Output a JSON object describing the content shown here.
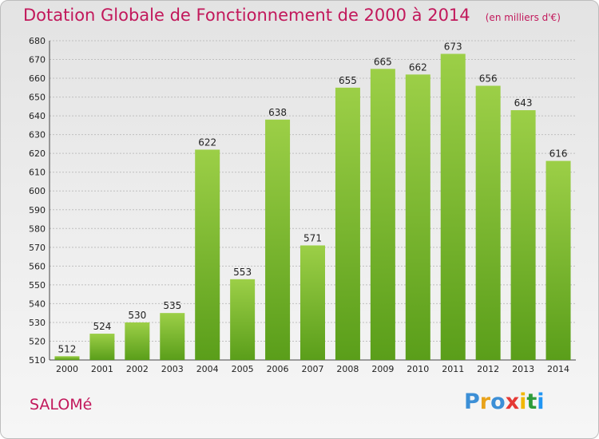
{
  "header": {
    "title": "Dotation Globale de Fonctionnement de 2000 à 2014",
    "subtitle": "(en milliers d'€)"
  },
  "commune": "SALOMé",
  "logo": {
    "letters": [
      {
        "ch": "P",
        "color": "#3c8fd6"
      },
      {
        "ch": "r",
        "color": "#e8a21a"
      },
      {
        "ch": "o",
        "color": "#3c8fd6"
      },
      {
        "ch": "x",
        "color": "#e53935"
      },
      {
        "ch": "i",
        "color": "#f2b705"
      },
      {
        "ch": "t",
        "color": "#2e9c3a"
      },
      {
        "ch": "i",
        "color": "#2196f3"
      }
    ]
  },
  "colors": {
    "accent": "#c2185b",
    "bar_top": "#9ccf47",
    "bar_bottom": "#5a9e1a",
    "grid": "#bfbfbf"
  },
  "chart_data": {
    "type": "bar",
    "title": "Dotation Globale de Fonctionnement de 2000 à 2014",
    "subtitle": "(en milliers d'€)",
    "categories": [
      "2000",
      "2001",
      "2002",
      "2003",
      "2004",
      "2005",
      "2006",
      "2007",
      "2008",
      "2009",
      "2010",
      "2011",
      "2012",
      "2013",
      "2014"
    ],
    "values": [
      512,
      524,
      530,
      535,
      622,
      553,
      638,
      571,
      655,
      665,
      662,
      673,
      656,
      643,
      616
    ],
    "ylim": [
      510,
      680
    ],
    "ytick_step": 10,
    "grid": true,
    "legend": "none",
    "data_labels": true
  }
}
